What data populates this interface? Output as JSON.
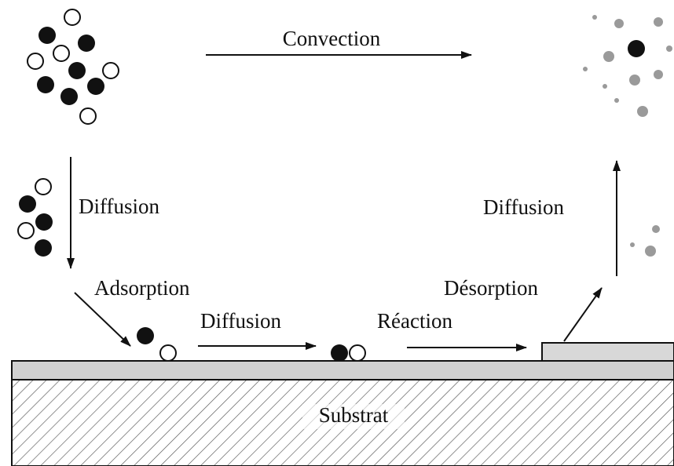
{
  "labels": {
    "convection": "Convection",
    "diffusion_left": "Diffusion",
    "diffusion_right": "Diffusion",
    "adsorption": "Adsorption",
    "diffusion_surface": "Diffusion",
    "reaction": "Réaction",
    "desorption": "Désorption",
    "substrate": "Substrat"
  }
}
